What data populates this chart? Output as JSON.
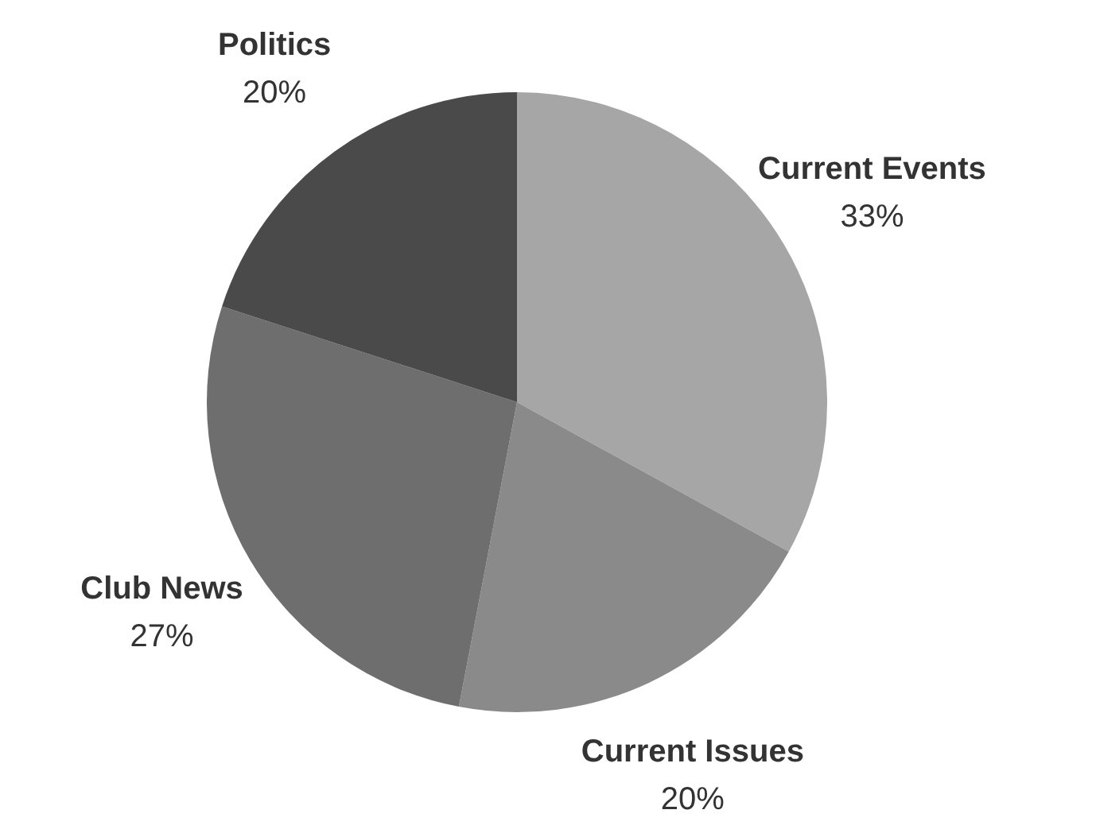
{
  "chart_data": {
    "type": "pie",
    "categories": [
      "Current Events",
      "Current Issues",
      "Club News",
      "Politics"
    ],
    "values": [
      33,
      20,
      27,
      20
    ],
    "value_labels": [
      "33%",
      "20%",
      "27%",
      "20%"
    ],
    "colors": [
      "#a6a6a6",
      "#8a8a8a",
      "#6e6e6e",
      "#4a4a4a"
    ],
    "legend": false
  }
}
